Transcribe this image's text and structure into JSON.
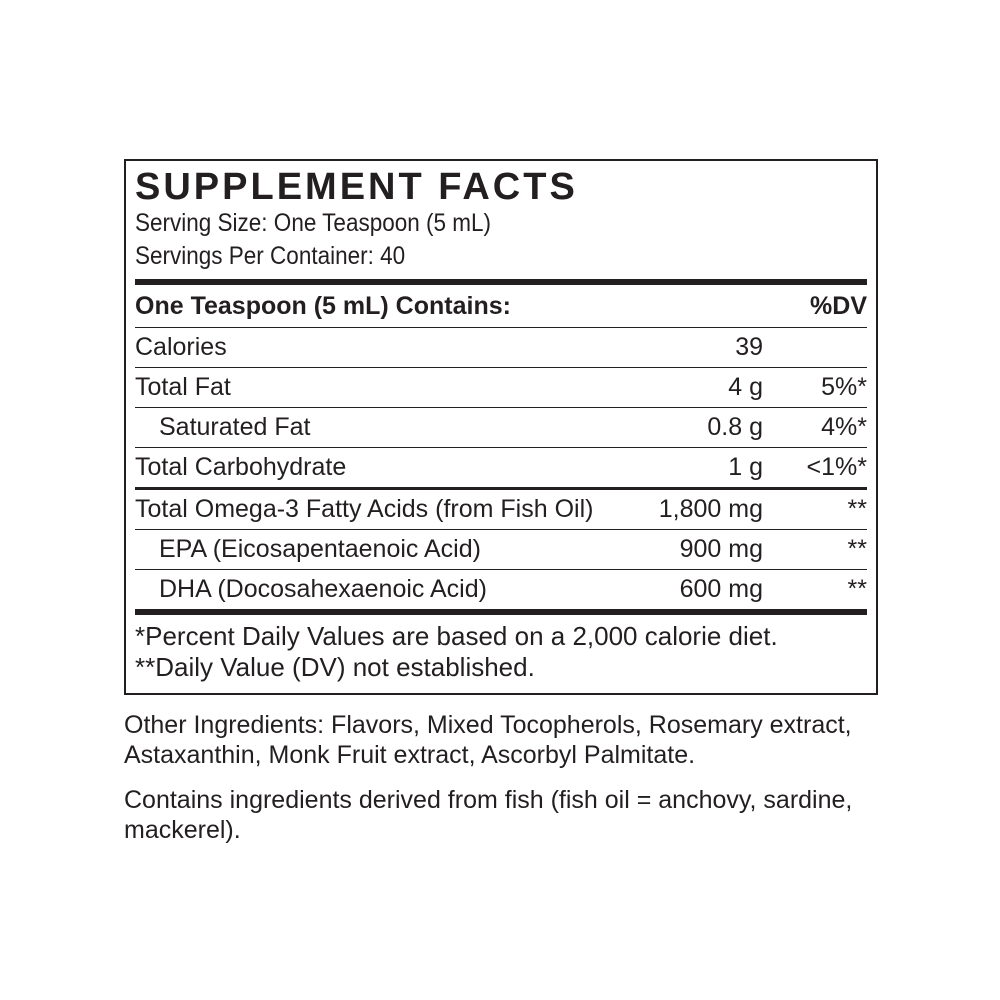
{
  "panel": {
    "title": "SUPPLEMENT FACTS",
    "serving_size": "Serving Size: One Teaspoon (5 mL)",
    "servings_per_container": "Servings Per Container: 40",
    "header": {
      "label": "One Teaspoon (5 mL) Contains:",
      "dv": "%DV"
    },
    "rows": [
      {
        "name": "Calories",
        "amount": "39",
        "dv": null,
        "indent": false
      },
      {
        "name": "Total Fat",
        "amount": "4 g",
        "dv": "5%*",
        "indent": false
      },
      {
        "name": "Saturated Fat",
        "amount": "0.8 g",
        "dv": "4%*",
        "indent": true
      },
      {
        "name": "Total Carbohydrate",
        "amount": "1 g",
        "dv": "<1%*",
        "indent": false
      },
      {
        "name": "Total Omega-3 Fatty Acids (from Fish Oil)",
        "amount": "1,800 mg",
        "dv": "**",
        "indent": false
      },
      {
        "name": "EPA (Eicosapentaenoic Acid)",
        "amount": "900 mg",
        "dv": "**",
        "indent": true
      },
      {
        "name": "DHA (Docosahexaenoic Acid)",
        "amount": "600 mg",
        "dv": "**",
        "indent": true
      }
    ],
    "footnotes": [
      "*Percent Daily Values are based on a 2,000 calorie diet.",
      "**Daily Value (DV) not established."
    ]
  },
  "other_ingredients": "Other Ingredients: Flavors, Mixed Tocopherols, Rosemary extract, Astaxanthin, Monk Fruit extract, Ascorbyl Palmitate.",
  "allergen": "Contains ingredients derived from fish (fish oil = anchovy, sardine, mackerel)."
}
